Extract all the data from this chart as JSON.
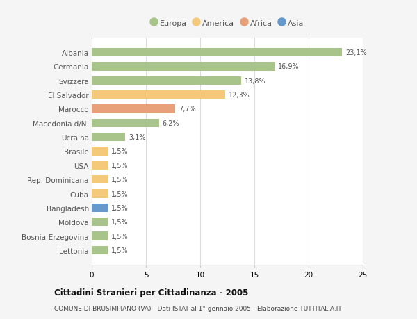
{
  "countries": [
    "Albania",
    "Germania",
    "Svizzera",
    "El Salvador",
    "Marocco",
    "Macedonia d/N.",
    "Ucraina",
    "Brasile",
    "USA",
    "Rep. Dominicana",
    "Cuba",
    "Bangladesh",
    "Moldova",
    "Bosnia-Erzegovina",
    "Lettonia"
  ],
  "values": [
    23.1,
    16.9,
    13.8,
    12.3,
    7.7,
    6.2,
    3.1,
    1.5,
    1.5,
    1.5,
    1.5,
    1.5,
    1.5,
    1.5,
    1.5
  ],
  "labels": [
    "23,1%",
    "16,9%",
    "13,8%",
    "12,3%",
    "7,7%",
    "6,2%",
    "3,1%",
    "1,5%",
    "1,5%",
    "1,5%",
    "1,5%",
    "1,5%",
    "1,5%",
    "1,5%",
    "1,5%"
  ],
  "colors": [
    "#a8c48a",
    "#a8c48a",
    "#a8c48a",
    "#f5c97a",
    "#e8a07a",
    "#a8c48a",
    "#a8c48a",
    "#f5c97a",
    "#f5c97a",
    "#f5c97a",
    "#f5c97a",
    "#6699cc",
    "#a8c48a",
    "#a8c48a",
    "#a8c48a"
  ],
  "legend": [
    {
      "label": "Europa",
      "color": "#a8c48a"
    },
    {
      "label": "America",
      "color": "#f5c97a"
    },
    {
      "label": "Africa",
      "color": "#e8a07a"
    },
    {
      "label": "Asia",
      "color": "#6699cc"
    }
  ],
  "title": "Cittadini Stranieri per Cittadinanza - 2005",
  "subtitle": "COMUNE DI BRUSIMPIANO (VA) - Dati ISTAT al 1° gennaio 2005 - Elaborazione TUTTITALIA.IT",
  "xlim": [
    0,
    25
  ],
  "xticks": [
    0,
    5,
    10,
    15,
    20,
    25
  ],
  "background_color": "#f5f5f5",
  "bar_background": "#ffffff"
}
